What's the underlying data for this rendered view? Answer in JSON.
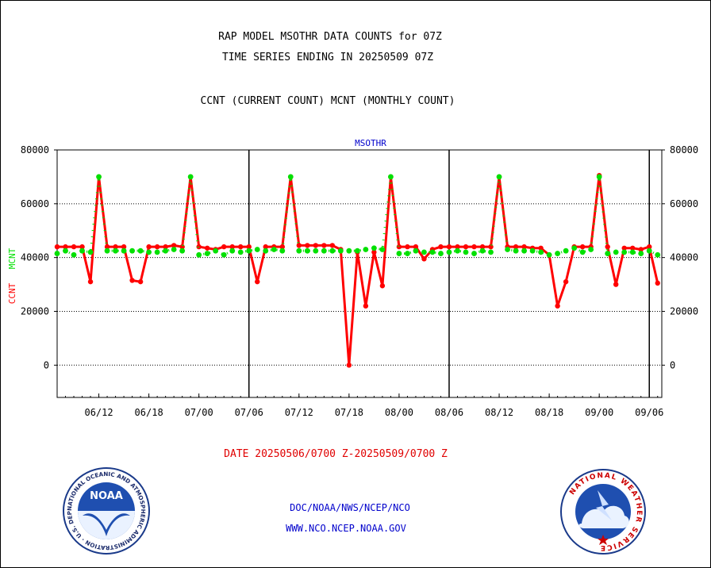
{
  "header": {
    "title_line1": "RAP MODEL MSOTHR DATA COUNTS for 07Z",
    "title_line2": "TIME SERIES ENDING IN 20250509 07Z",
    "subtitle": "CCNT (CURRENT COUNT) MCNT (MONTHLY COUNT)"
  },
  "footer": {
    "date_range": "DATE 20250506/0700 Z-20250509/0700 Z",
    "org": "DOC/NOAA/NWS/NCEP/NCO",
    "url": "WWW.NCO.NCEP.NOAA.GOV"
  },
  "logos": {
    "left_text": "NATIONAL OCEANIC AND ATMOSPHERIC ADMINISTRATION · U.S. DEPARTMENT OF COMMERCE ·",
    "left_name": "NOAA",
    "right_text": "NATIONAL WEATHER SERVICE"
  },
  "colors": {
    "ccnt": "#ff0000",
    "mcnt": "#00e000",
    "label_blue": "#0000cc",
    "date_red": "#e00000"
  },
  "chart_data": {
    "type": "line",
    "title": "MSOTHR",
    "ylabel_left": [
      "CCNT",
      "MCNT"
    ],
    "ylim": [
      -12000,
      80000
    ],
    "y_ticks": [
      0,
      20000,
      40000,
      60000,
      80000
    ],
    "x_tick_labels": [
      "06/12",
      "06/18",
      "07/00",
      "07/06",
      "07/12",
      "07/18",
      "08/00",
      "08/06",
      "08/12",
      "08/18",
      "09/00",
      "09/06"
    ],
    "x_tick_hours": [
      5,
      11,
      17,
      23,
      29,
      35,
      41,
      47,
      53,
      59,
      65,
      71
    ],
    "xlim": [
      0,
      72.5
    ],
    "day_boundaries": [
      23,
      47,
      71
    ],
    "grid": true,
    "series": [
      {
        "name": "CCNT",
        "x": [
          0,
          1,
          2,
          3,
          4,
          5,
          6,
          7,
          8,
          9,
          10,
          11,
          12,
          13,
          14,
          15,
          16,
          17,
          18,
          19,
          20,
          21,
          22,
          23,
          24,
          25,
          26,
          27,
          28,
          29,
          30,
          31,
          32,
          33,
          34,
          35,
          36,
          37,
          38,
          39,
          40,
          41,
          42,
          43,
          44,
          45,
          46,
          47,
          48,
          49,
          50,
          51,
          52,
          53,
          54,
          55,
          56,
          57,
          58,
          59,
          60,
          61,
          62,
          63,
          64,
          65,
          66,
          67,
          68,
          69,
          70,
          71,
          72
        ],
        "values": [
          44000,
          44000,
          44000,
          44000,
          31000,
          70000,
          44000,
          44000,
          44000,
          31500,
          31000,
          44000,
          44000,
          44000,
          44500,
          44000,
          70000,
          44000,
          43500,
          43000,
          44000,
          44000,
          44000,
          44000,
          31000,
          44000,
          44000,
          44000,
          70000,
          44500,
          44500,
          44500,
          44500,
          44500,
          43000,
          0,
          42000,
          22000,
          42000,
          29500,
          70000,
          44000,
          44000,
          44000,
          39500,
          43000,
          44000,
          44000,
          44000,
          44000,
          44000,
          44000,
          44000,
          70000,
          44000,
          44000,
          44000,
          43500,
          43500,
          41000,
          22000,
          31000,
          44000,
          44000,
          44000,
          70500,
          44000,
          30000,
          43500,
          43500,
          43000,
          44000,
          30500
        ]
      },
      {
        "name": "MCNT",
        "x": [
          0,
          1,
          2,
          3,
          4,
          5,
          6,
          7,
          8,
          9,
          10,
          11,
          12,
          13,
          14,
          15,
          16,
          17,
          18,
          19,
          20,
          21,
          22,
          23,
          24,
          25,
          26,
          27,
          28,
          29,
          30,
          31,
          32,
          33,
          34,
          35,
          36,
          37,
          38,
          39,
          40,
          41,
          42,
          43,
          44,
          45,
          46,
          47,
          48,
          49,
          50,
          51,
          52,
          53,
          54,
          55,
          56,
          57,
          58,
          59,
          60,
          61,
          62,
          63,
          64,
          65,
          66,
          67,
          68,
          69,
          70,
          71,
          72
        ],
        "values": [
          41500,
          42500,
          41000,
          42500,
          42000,
          70000,
          42500,
          42500,
          42500,
          42500,
          42500,
          42000,
          42000,
          42500,
          43000,
          42500,
          70000,
          41000,
          41500,
          42500,
          41000,
          42500,
          42000,
          42500,
          43000,
          42500,
          43000,
          42500,
          70000,
          42500,
          42500,
          42500,
          42500,
          42500,
          42500,
          42500,
          42500,
          43000,
          43500,
          43000,
          70000,
          41500,
          41500,
          42500,
          42000,
          42000,
          41500,
          42000,
          42500,
          42000,
          41500,
          42500,
          42000,
          70000,
          43000,
          42500,
          42500,
          42500,
          42000,
          41000,
          41500,
          42500,
          43500,
          42000,
          43000,
          70000,
          41500,
          42000,
          42000,
          42000,
          41500,
          42500,
          41000
        ]
      }
    ]
  }
}
